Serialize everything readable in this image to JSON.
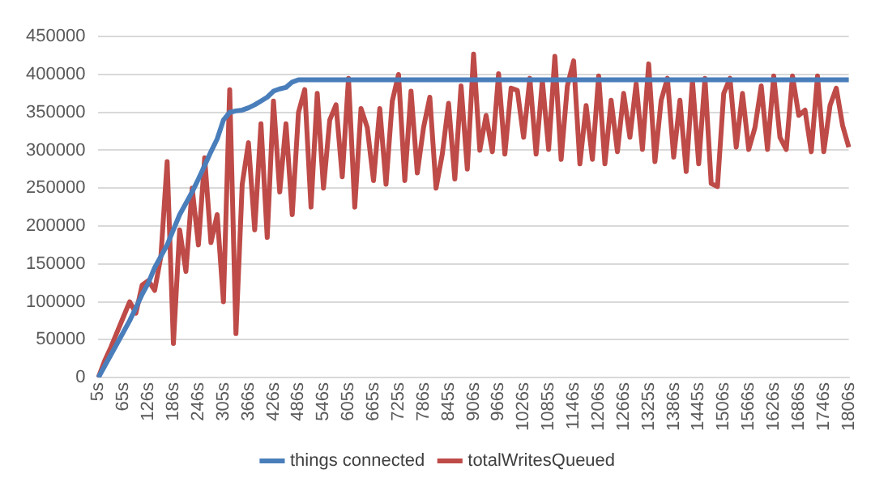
{
  "chart_data": {
    "type": "line",
    "categories": [
      "5s",
      null,
      null,
      null,
      "65s",
      null,
      null,
      null,
      "126s",
      null,
      null,
      null,
      "186s",
      null,
      null,
      null,
      "246s",
      null,
      null,
      null,
      "305s",
      null,
      null,
      null,
      "366s",
      null,
      null,
      null,
      "426s",
      null,
      null,
      null,
      "486s",
      null,
      null,
      null,
      "546s",
      null,
      null,
      null,
      "605s",
      null,
      null,
      null,
      "665s",
      null,
      null,
      null,
      "725s",
      null,
      null,
      null,
      "786s",
      null,
      null,
      null,
      "845s",
      null,
      null,
      null,
      "906s",
      null,
      null,
      null,
      "966s",
      null,
      null,
      null,
      "1026s",
      null,
      null,
      null,
      "1085s",
      null,
      null,
      null,
      "1146s",
      null,
      null,
      null,
      "1206s",
      null,
      null,
      null,
      "1266s",
      null,
      null,
      null,
      "1325s",
      null,
      null,
      null,
      "1386s",
      null,
      null,
      null,
      "1445s",
      null,
      null,
      null,
      "1506s",
      null,
      null,
      null,
      "1566s",
      null,
      null,
      null,
      "1626s",
      null,
      null,
      null,
      "1686s",
      null,
      null,
      null,
      "1746s",
      null,
      null,
      null,
      "1806s"
    ],
    "series": [
      {
        "name": "things connected",
        "color": "#4a7ebb",
        "values": [
          0,
          15000,
          30000,
          45000,
          60000,
          75000,
          92000,
          110000,
          125000,
          145000,
          160000,
          175000,
          195000,
          215000,
          230000,
          245000,
          262000,
          280000,
          298000,
          315000,
          340000,
          350000,
          352000,
          353000,
          356000,
          360000,
          365000,
          370000,
          378000,
          381000,
          383000,
          390000,
          393000,
          393000,
          393000,
          393000,
          393000,
          393000,
          393000,
          393000,
          393000,
          393000,
          393000,
          393000,
          393000,
          393000,
          393000,
          393000,
          393000,
          393000,
          393000,
          393000,
          393000,
          393000,
          393000,
          393000,
          393000,
          393000,
          393000,
          393000,
          393000,
          393000,
          393000,
          393000,
          393000,
          393000,
          393000,
          393000,
          393000,
          393000,
          393000,
          393000,
          393000,
          393000,
          393000,
          393000,
          393000,
          393000,
          393000,
          393000,
          393000,
          393000,
          393000,
          393000,
          393000,
          393000,
          393000,
          393000,
          393000,
          393000,
          393000,
          393000,
          393000,
          393000,
          393000,
          393000,
          393000,
          393000,
          393000,
          393000,
          393000,
          393000,
          393000,
          393000,
          393000,
          393000,
          393000,
          393000,
          393000,
          393000,
          393000,
          393000,
          393000,
          393000,
          393000,
          393000,
          393000,
          393000,
          393000,
          393000,
          393000
        ]
      },
      {
        "name": "totalWritesQueued",
        "color": "#be4b48",
        "values": [
          0,
          22000,
          40000,
          60000,
          80000,
          100000,
          85000,
          122000,
          128000,
          115000,
          160000,
          285000,
          45000,
          195000,
          140000,
          250000,
          175000,
          290000,
          178000,
          215000,
          100000,
          380000,
          58000,
          255000,
          310000,
          195000,
          335000,
          185000,
          365000,
          245000,
          335000,
          215000,
          350000,
          380000,
          225000,
          375000,
          250000,
          340000,
          360000,
          265000,
          395000,
          225000,
          355000,
          330000,
          260000,
          355000,
          255000,
          365000,
          400000,
          260000,
          378000,
          270000,
          330000,
          370000,
          250000,
          295000,
          362000,
          262000,
          385000,
          275000,
          427000,
          300000,
          346000,
          298000,
          401000,
          295000,
          382000,
          379000,
          317000,
          395000,
          295000,
          392000,
          301000,
          424000,
          288000,
          385000,
          418000,
          282000,
          359000,
          288000,
          398000,
          282000,
          366000,
          298000,
          375000,
          317000,
          388000,
          301000,
          414000,
          285000,
          366000,
          395000,
          291000,
          366000,
          272000,
          392000,
          282000,
          395000,
          256000,
          252000,
          375000,
          395000,
          304000,
          375000,
          301000,
          330000,
          385000,
          301000,
          398000,
          317000,
          301000,
          398000,
          346000,
          353000,
          298000,
          398000,
          298000,
          359000,
          382000,
          333000,
          304000
        ]
      }
    ],
    "ylim": [
      0,
      450000
    ],
    "yticks": [
      0,
      50000,
      100000,
      150000,
      200000,
      250000,
      300000,
      350000,
      400000,
      450000
    ],
    "grid": "y",
    "legend": "bottom",
    "marker": "none",
    "line_style": "solid"
  }
}
